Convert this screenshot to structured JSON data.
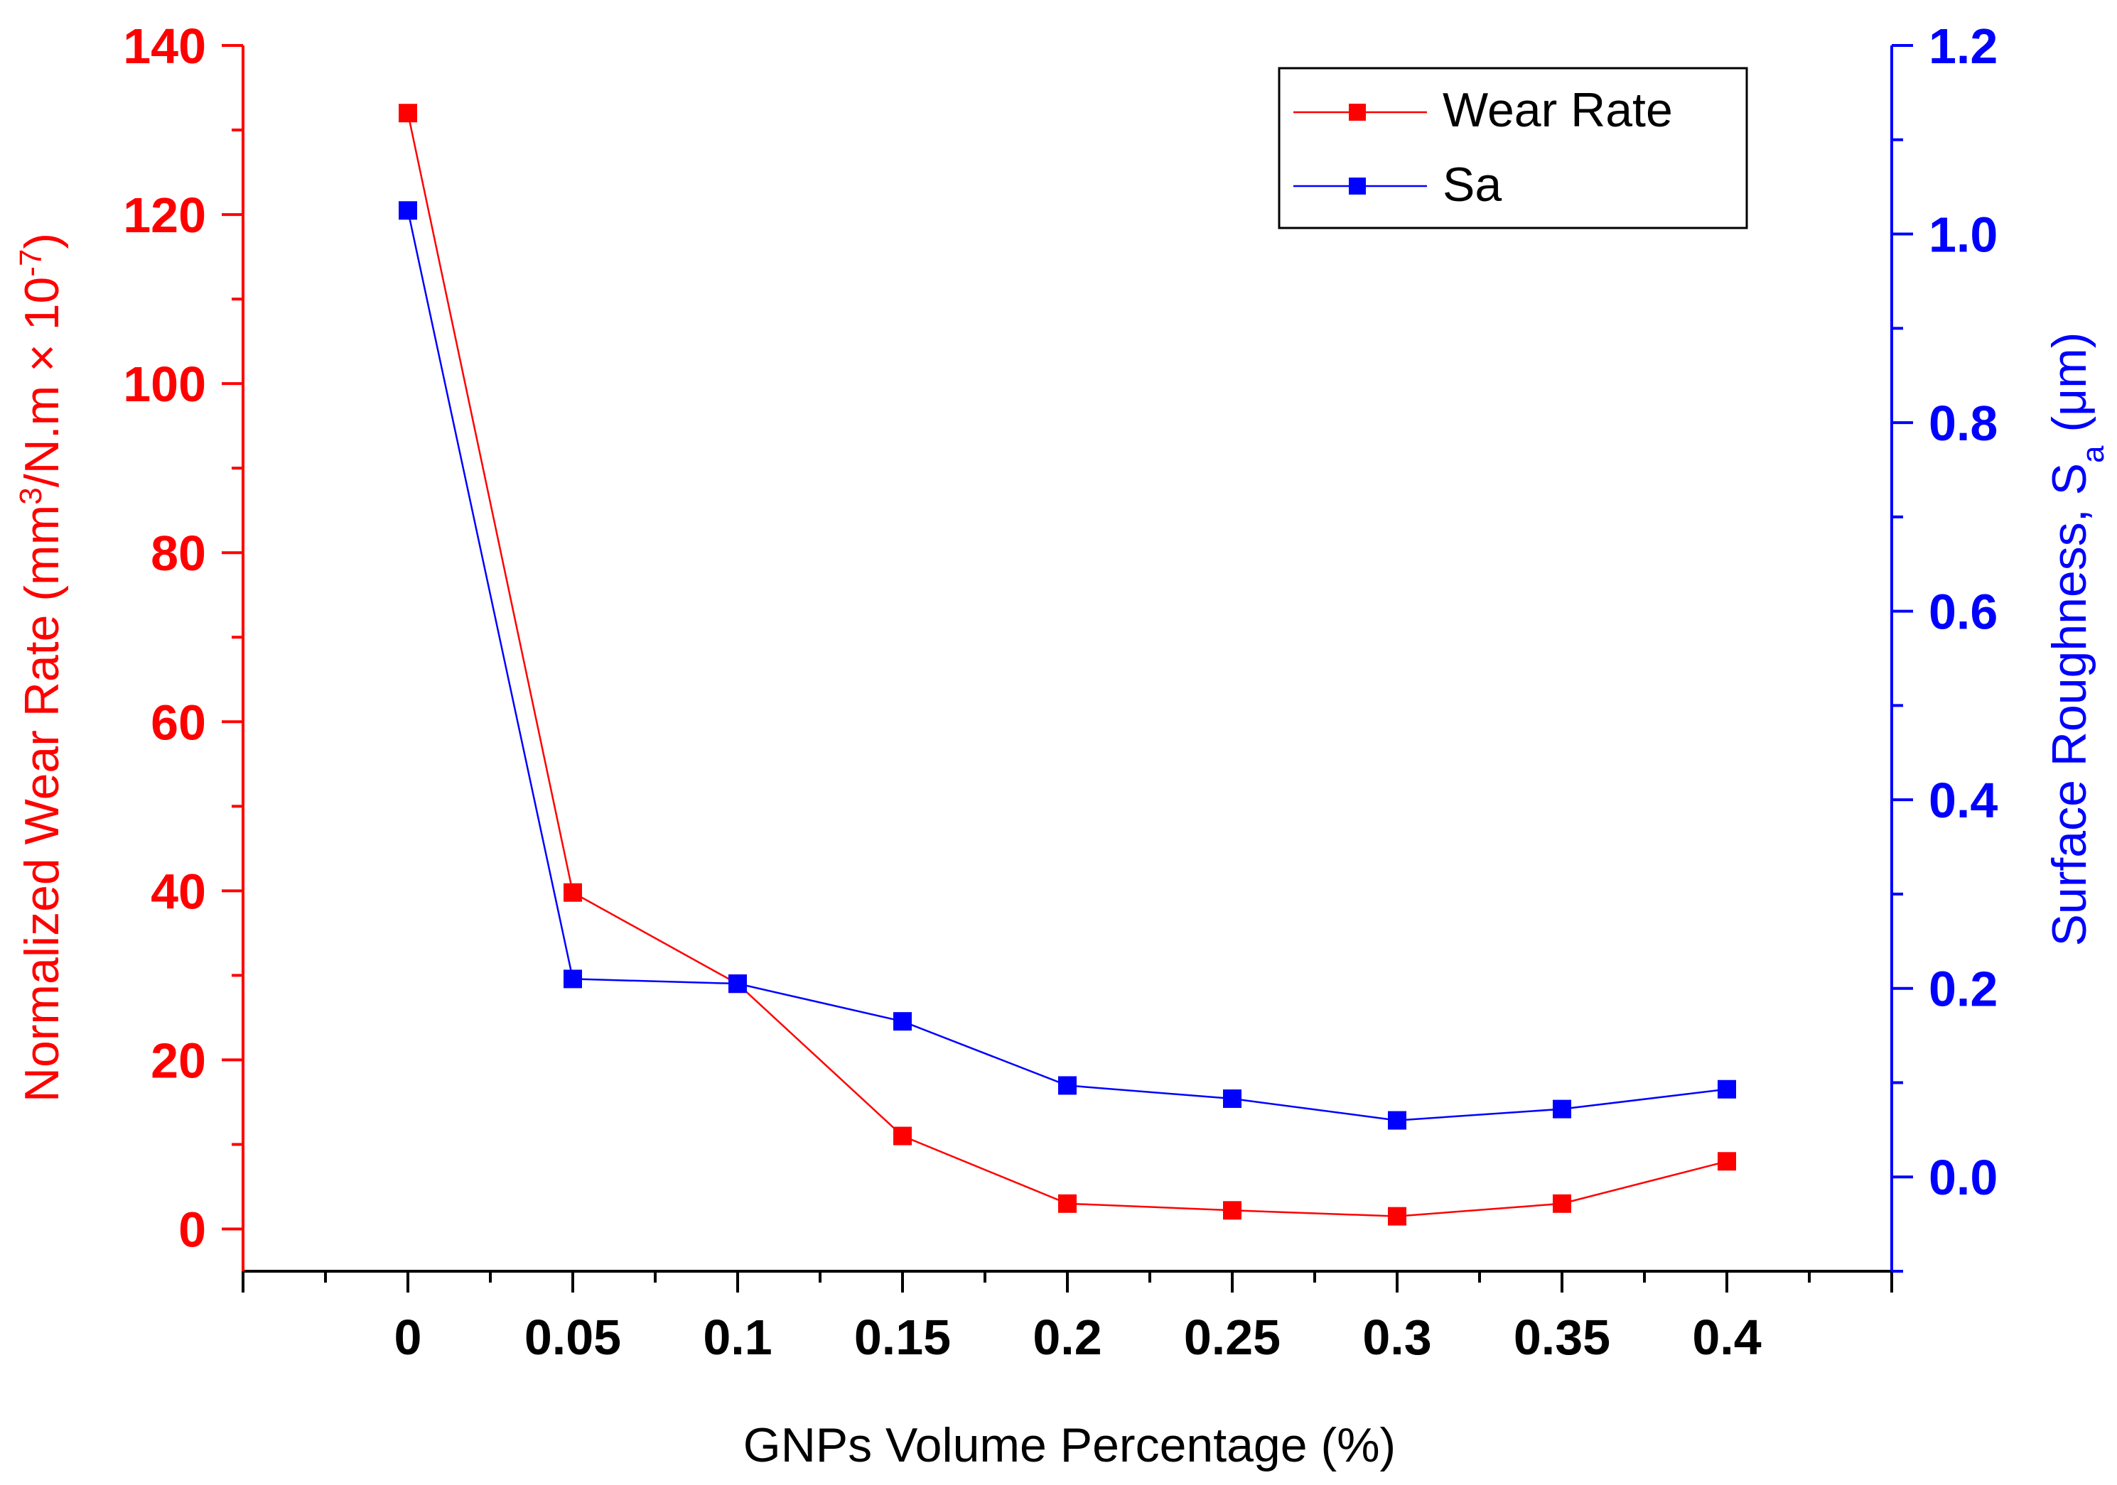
{
  "chart_data": {
    "type": "line",
    "title": "",
    "xlabel": "GNPs Volume Percentage (%)",
    "x": [
      0,
      0.05,
      0.1,
      0.15,
      0.2,
      0.25,
      0.3,
      0.35,
      0.4
    ],
    "x_tick_labels": [
      "0",
      "0.05",
      "0.1",
      "0.15",
      "0.2",
      "0.25",
      "0.3",
      "0.35",
      "0.4"
    ],
    "xlim": [
      -0.05,
      0.45
    ],
    "y_left": {
      "label_parts": {
        "pre": "Normalized Wear Rate (mm",
        "sup1": "3",
        "mid": "/N.m × 10",
        "sup2": "-7",
        "post": ")"
      },
      "ylim": [
        -5,
        140
      ],
      "ticks": [
        0,
        20,
        40,
        60,
        80,
        100,
        120,
        140
      ],
      "tick_labels": [
        "0",
        "20",
        "40",
        "60",
        "80",
        "100",
        "120",
        "140"
      ],
      "color": "#ff0000"
    },
    "y_right": {
      "label_parts": {
        "pre": "Surface Roughness, S",
        "sub": "a",
        "post": " (μm)"
      },
      "ylim": [
        -0.1,
        1.2
      ],
      "ticks": [
        0.0,
        0.2,
        0.4,
        0.6,
        0.8,
        1.0,
        1.2
      ],
      "tick_labels": [
        "0.0",
        "0.2",
        "0.4",
        "0.6",
        "0.8",
        "1.0",
        "1.2"
      ],
      "color": "#0000ff"
    },
    "series": [
      {
        "name": "Wear Rate",
        "axis": "left",
        "color": "#ff0000",
        "values": [
          132,
          39.8,
          29,
          11,
          3,
          2.2,
          1.5,
          3,
          8
        ]
      },
      {
        "name": "Sa",
        "axis": "right",
        "color": "#0000ff",
        "values": [
          1.025,
          0.21,
          0.205,
          0.165,
          0.097,
          0.083,
          0.06,
          0.072,
          0.093
        ]
      }
    ],
    "legend": {
      "position": "top-right",
      "entries": [
        "Wear Rate",
        "Sa"
      ]
    }
  }
}
